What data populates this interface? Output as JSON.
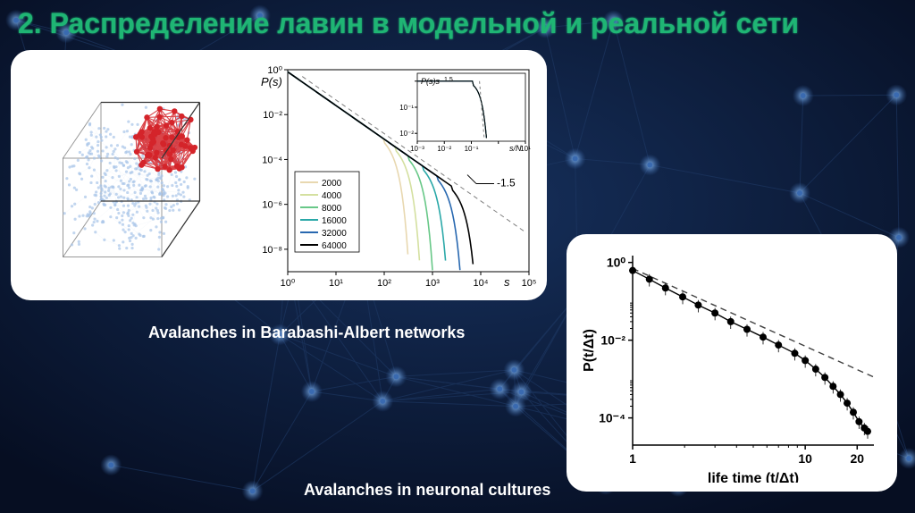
{
  "title": "2. Распределение лавин в модельной и реальной сети",
  "captions": {
    "ba": "Avalanches in Barabashi-Albert networks",
    "nc": "Avalanches in neuronal cultures"
  },
  "background": {
    "color": "#0a1530",
    "node_color": "#3a6ab0",
    "edge_color": "#1f3a66",
    "glow_color": "#6fa8ff"
  },
  "cube": {
    "edge_color": "#333333",
    "blue_node": "#a8c4e8",
    "blue_edge": "#c8d8ec",
    "red_node": "#d4242a",
    "red_edge": "#d4242a"
  },
  "main_chart": {
    "type": "loglog",
    "ylabel": "P(s)",
    "xlabel_symbol": "s",
    "xlim": [
      1,
      100000
    ],
    "ylim": [
      1e-09,
      1
    ],
    "xticks": [
      1,
      10,
      100,
      1000,
      10000,
      100000
    ],
    "xtick_labels": [
      "10⁰",
      "10¹",
      "10²",
      "10³",
      "10⁴",
      "10⁵"
    ],
    "yticks": [
      1,
      0.01,
      0.0001,
      1e-06,
      1e-08
    ],
    "ytick_labels": [
      "10⁰",
      "10⁻²",
      "10⁻⁴",
      "10⁻⁶",
      "10⁻⁸"
    ],
    "exponent_label": "-1.5",
    "legend": [
      {
        "label": "2000",
        "color": "#e8d8b0"
      },
      {
        "label": "4000",
        "color": "#d4e0a0"
      },
      {
        "label": "8000",
        "color": "#68c888"
      },
      {
        "label": "16000",
        "color": "#2aa8a8"
      },
      {
        "label": "32000",
        "color": "#2868b0"
      },
      {
        "label": "64000",
        "color": "#000000"
      }
    ],
    "line_width": 1.6,
    "dash_color": "#808080",
    "cutoffs_x": [
      200,
      350,
      650,
      1300,
      2600,
      5200
    ],
    "inset": {
      "ylabel": "P(s)s^1.5",
      "xlabel": "s/N",
      "xlim": [
        0.001,
        10
      ],
      "ylim": [
        0.005,
        2
      ],
      "xticks_labels": [
        "10⁻³",
        "10⁻²",
        "10⁻¹",
        "",
        "10¹"
      ],
      "yticks_labels": [
        "10⁻²",
        "10⁻¹",
        ""
      ]
    }
  },
  "right_chart": {
    "type": "loglog-scatter",
    "xlabel": "life time (t/Δt)",
    "ylabel": "P(t/Δt)",
    "xlim": [
      1,
      25
    ],
    "ylim": [
      2e-05,
      1.5
    ],
    "xticks": [
      1,
      10,
      20
    ],
    "xtick_labels": [
      "1",
      "10",
      "20"
    ],
    "yticks": [
      1,
      0.01,
      0.0001
    ],
    "ytick_labels": [
      "10⁰",
      "10⁻²",
      "10⁻⁴"
    ],
    "marker_color": "#000000",
    "marker_size": 4,
    "line_color": "#000000",
    "dash_color": "#404040",
    "data": [
      {
        "x": 1,
        "y": 0.62
      },
      {
        "x": 1.25,
        "y": 0.37
      },
      {
        "x": 1.55,
        "y": 0.22
      },
      {
        "x": 1.95,
        "y": 0.13
      },
      {
        "x": 2.4,
        "y": 0.08
      },
      {
        "x": 3,
        "y": 0.05
      },
      {
        "x": 3.7,
        "y": 0.03
      },
      {
        "x": 4.6,
        "y": 0.019
      },
      {
        "x": 5.7,
        "y": 0.012
      },
      {
        "x": 7,
        "y": 0.0075
      },
      {
        "x": 8.7,
        "y": 0.0046
      },
      {
        "x": 10,
        "y": 0.003
      },
      {
        "x": 11.5,
        "y": 0.0018
      },
      {
        "x": 13,
        "y": 0.0011
      },
      {
        "x": 14.5,
        "y": 0.00065
      },
      {
        "x": 16,
        "y": 0.0004
      },
      {
        "x": 17.5,
        "y": 0.00024
      },
      {
        "x": 19,
        "y": 0.00014
      },
      {
        "x": 20.5,
        "y": 8e-05
      },
      {
        "x": 22,
        "y": 5.5e-05
      },
      {
        "x": 23,
        "y": 4.5e-05
      }
    ]
  }
}
